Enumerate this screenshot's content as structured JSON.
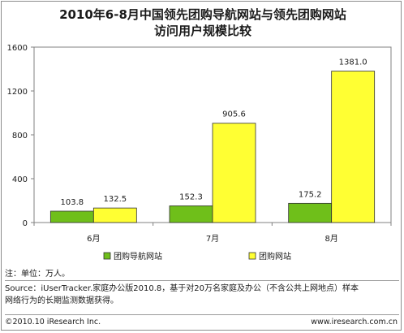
{
  "chart_data": {
    "type": "bar",
    "title_line1": "2010年6-8月中国领先团购导航网站与领先团购网站",
    "title_line2": "访问用户规模比较",
    "categories": [
      "6月",
      "7月",
      "8月"
    ],
    "ylim": [
      0,
      1600
    ],
    "yticks": [
      0,
      400,
      800,
      1200,
      1600
    ],
    "series": [
      {
        "name": "团购导航网站",
        "color": "#6fbf1a",
        "values": [
          103.8,
          152.3,
          175.2
        ],
        "labels": [
          "103.8",
          "152.3",
          "175.2"
        ]
      },
      {
        "name": "团购网站",
        "color": "#ffff33",
        "values": [
          132.5,
          905.6,
          1381.0
        ],
        "labels": [
          "132.5",
          "905.6",
          "1381.0"
        ]
      }
    ],
    "legend_position": "bottom"
  },
  "notes": {
    "unit": "注：单位：万人。",
    "source_line1": "Source：iUserTracker.家庭办公版2010.8，基于对20万名家庭及办公（不含公共上网地点）样本",
    "source_line2": "网络行为的长期监测数据获得。"
  },
  "footer": {
    "copyright": "©2010.10 iResearch Inc.",
    "website": "www.iresearch.com.cn"
  }
}
